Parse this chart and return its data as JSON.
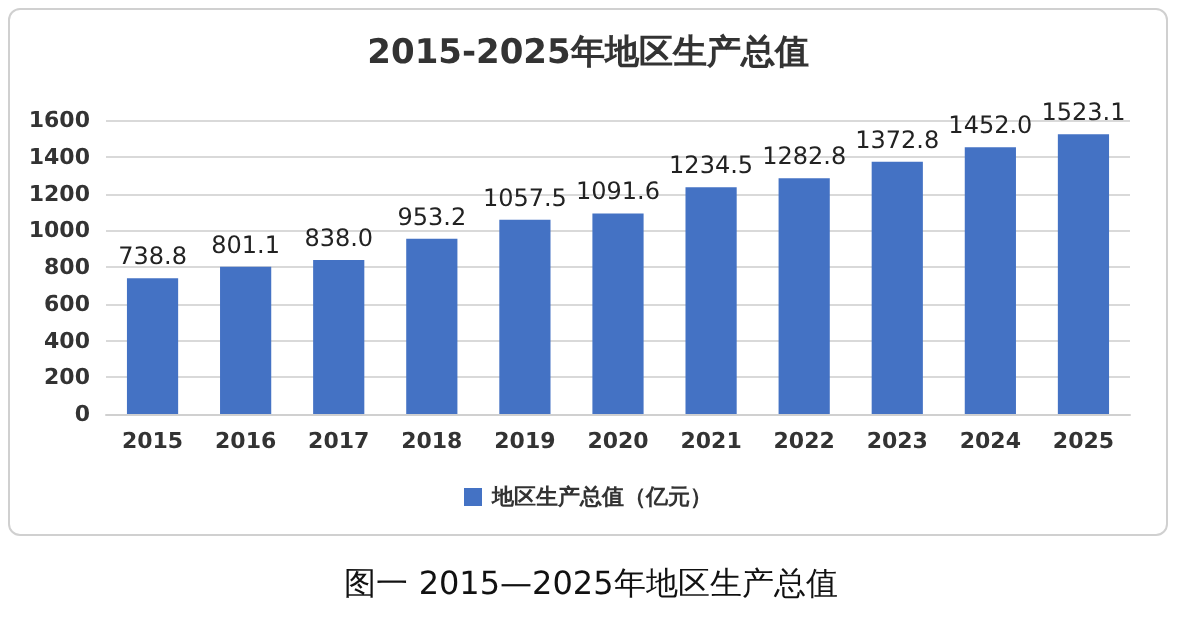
{
  "chart_data": {
    "type": "bar",
    "title": "2015-2025年地区生产总值",
    "categories": [
      "2015",
      "2016",
      "2017",
      "2018",
      "2019",
      "2020",
      "2021",
      "2022",
      "2023",
      "2024",
      "2025"
    ],
    "series": [
      {
        "name": "地区生产总值（亿元）",
        "color": "#4472c4",
        "values": [
          738.8,
          801.1,
          838.0,
          953.2,
          1057.5,
          1091.6,
          1234.5,
          1282.8,
          1372.8,
          1452.0,
          1523.1
        ],
        "value_labels": [
          "738.8",
          "801.1",
          "838.0",
          "953.2",
          "1057.5",
          "1091.6",
          "1234.5",
          "1282.8",
          "1372.8",
          "1452.0",
          "1523.1"
        ]
      }
    ],
    "ylim": [
      0,
      1600
    ],
    "yticks": [
      0,
      200,
      400,
      600,
      800,
      1000,
      1200,
      1400,
      1600
    ],
    "grid": "y",
    "legend": "bottom",
    "annotations": [
      "图一 2015—2025年地区生产总值"
    ]
  }
}
